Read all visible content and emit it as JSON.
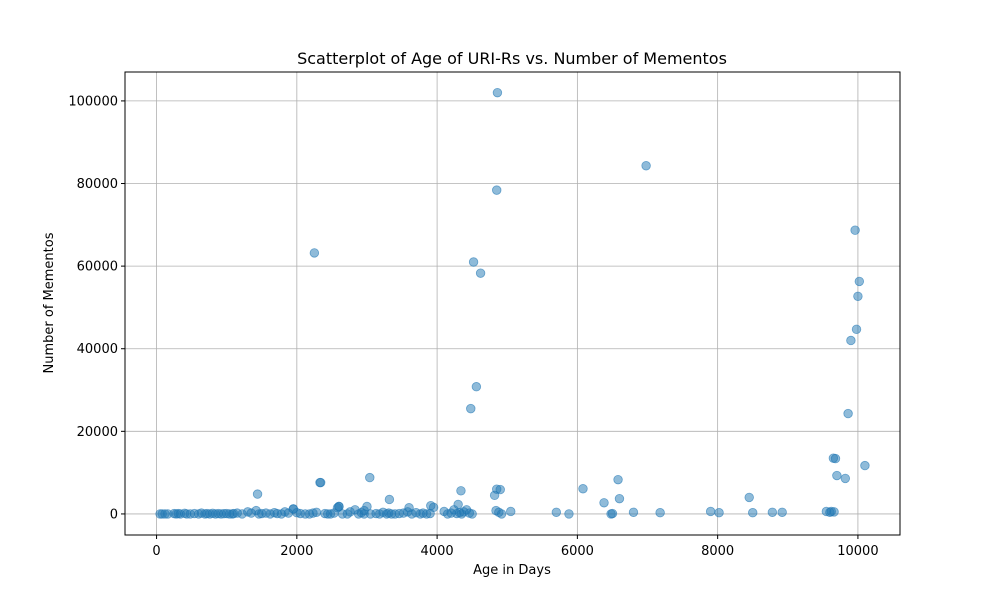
{
  "chart_data": {
    "type": "scatter",
    "title": "Scatterplot of Age of URI-Rs vs. Number of Mementos",
    "xlabel": "Age in Days",
    "ylabel": "Number of Mementos",
    "xlim": [
      -450,
      10600
    ],
    "ylim": [
      -5100,
      107000
    ],
    "xticks": [
      0,
      2000,
      4000,
      6000,
      8000,
      10000
    ],
    "yticks": [
      0,
      20000,
      40000,
      60000,
      80000,
      100000
    ],
    "grid": true,
    "point_color": "#1f77b4",
    "point_alpha": 0.5,
    "series": [
      {
        "x": [
          50,
          80,
          120,
          160,
          250,
          280,
          310,
          340,
          400,
          430,
          480,
          540,
          600,
          640,
          690,
          720,
          760,
          800,
          840,
          880,
          920,
          960,
          1000,
          1040,
          1080,
          1100,
          1150,
          1220,
          1300,
          1350,
          1420,
          1460,
          1500,
          1560,
          1620,
          1680,
          1720,
          1780,
          1830,
          1880,
          1950,
          2000,
          2050,
          2120,
          2180,
          2230,
          2280,
          2330,
          2400,
          2440,
          2480,
          2530,
          2580,
          2600,
          2650,
          2720,
          2760,
          2830,
          2880,
          2920,
          2960,
          3000,
          3050,
          3130,
          3180,
          3230,
          3280,
          3310,
          3350,
          3400,
          3460,
          3520,
          3580,
          3640,
          3700,
          3760,
          3800,
          3850,
          3900,
          3950,
          4100,
          4150,
          4200,
          4240,
          4280,
          4320,
          4350,
          4380,
          4420,
          4460,
          4500,
          4480,
          4520,
          4560,
          4620,
          4820,
          4840,
          4850,
          4860,
          4880,
          4920,
          5050,
          5700,
          5880,
          6080,
          6380,
          6480,
          6500,
          6580,
          6600,
          6800,
          7180,
          6980,
          7900,
          8020,
          8450,
          8500,
          8780,
          8920,
          9550,
          9600,
          9620,
          9650,
          9660,
          9680,
          9700,
          9820,
          9860,
          9900,
          9960,
          9980,
          10000,
          10020,
          10100,
          1440,
          2250,
          2340,
          3040,
          3320,
          4340,
          4850,
          4900,
          2600,
          2960,
          3600,
          3910,
          1950,
          4300
        ],
        "y": [
          0,
          0,
          0,
          0,
          100,
          0,
          100,
          0,
          150,
          0,
          0,
          100,
          0,
          200,
          0,
          100,
          0,
          150,
          0,
          100,
          0,
          50,
          100,
          0,
          0,
          100,
          200,
          0,
          500,
          200,
          800,
          0,
          100,
          200,
          0,
          300,
          100,
          0,
          500,
          200,
          1200,
          300,
          100,
          0,
          0,
          200,
          400,
          7600,
          100,
          0,
          0,
          200,
          1500,
          1800,
          0,
          0,
          500,
          1000,
          0,
          300,
          0,
          1800,
          0,
          100,
          0,
          400,
          0,
          200,
          0,
          0,
          100,
          200,
          500,
          0,
          300,
          0,
          200,
          0,
          100,
          1600,
          600,
          0,
          200,
          1000,
          100,
          300,
          0,
          500,
          1000,
          200,
          0,
          25500,
          61000,
          30800,
          58300,
          4500,
          800,
          6000,
          102000,
          400,
          0,
          600,
          400,
          0,
          6100,
          2700,
          0,
          100,
          8300,
          3700,
          400,
          300,
          84300,
          600,
          300,
          4000,
          300,
          400,
          400,
          600,
          400,
          600,
          13500,
          500,
          13400,
          9300,
          8600,
          24300,
          42000,
          68700,
          44700,
          52700,
          56300,
          11700,
          4800,
          63200,
          7600,
          8800,
          3500,
          5600,
          78400,
          5900,
          1800,
          800,
          1500,
          2000,
          1200,
          2300
        ]
      }
    ]
  }
}
